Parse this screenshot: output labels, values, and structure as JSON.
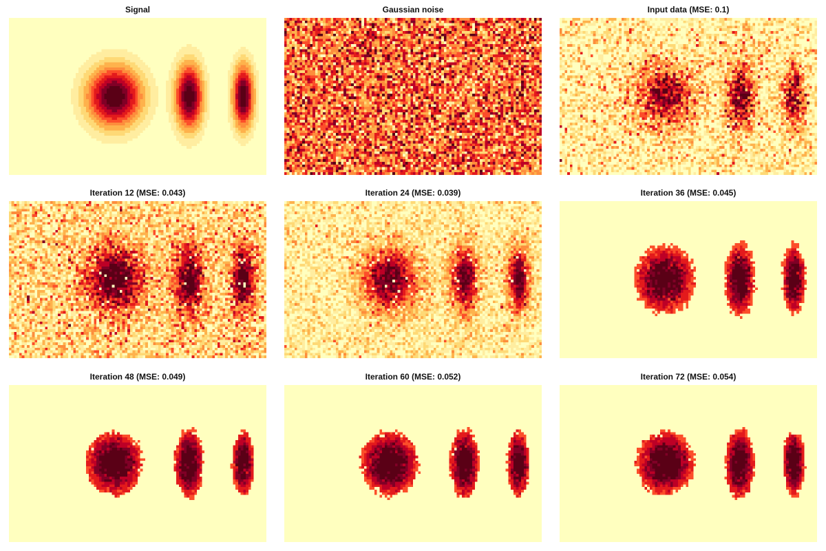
{
  "chart_data": [
    {
      "type": "heatmap",
      "title": "Signal",
      "kind": "signal",
      "seed": 1,
      "scale": 1.0
    },
    {
      "type": "heatmap",
      "title": "Gaussian noise",
      "kind": "noise",
      "seed": 2
    },
    {
      "type": "heatmap",
      "title": "Input data (MSE: 0.1)",
      "kind": "input",
      "seed": 3,
      "noise": 0.55
    },
    {
      "type": "heatmap",
      "title": "Iteration 12 (MSE: 0.043)",
      "kind": "iter",
      "seed": 4,
      "bg": 0.24,
      "noise": 0.5,
      "thresh": 0.0
    },
    {
      "type": "heatmap",
      "title": "Iteration 24 (MSE: 0.039)",
      "kind": "iter",
      "seed": 5,
      "bg": 0.15,
      "noise": 0.38,
      "thresh": 0.0
    },
    {
      "type": "heatmap",
      "title": "Iteration 36 (MSE: 0.045)",
      "kind": "iter",
      "seed": 6,
      "bg": 0.0,
      "noise": 0.18,
      "thresh": 0.3
    },
    {
      "type": "heatmap",
      "title": "Iteration 48 (MSE: 0.049)",
      "kind": "iter",
      "seed": 7,
      "bg": 0.0,
      "noise": 0.14,
      "thresh": 0.36
    },
    {
      "type": "heatmap",
      "title": "Iteration 60 (MSE: 0.052)",
      "kind": "iter",
      "seed": 8,
      "bg": 0.0,
      "noise": 0.14,
      "thresh": 0.36
    },
    {
      "type": "heatmap",
      "title": "Iteration 72 (MSE: 0.054)",
      "kind": "iter",
      "seed": 9,
      "bg": 0.0,
      "noise": 0.14,
      "thresh": 0.36
    }
  ],
  "colormap": [
    "#ffffbf",
    "#ffeda0",
    "#fed976",
    "#feb24c",
    "#fd8d3c",
    "#fc4e2a",
    "#e31a1c",
    "#bd0026",
    "#800026",
    "#5a0016"
  ]
}
